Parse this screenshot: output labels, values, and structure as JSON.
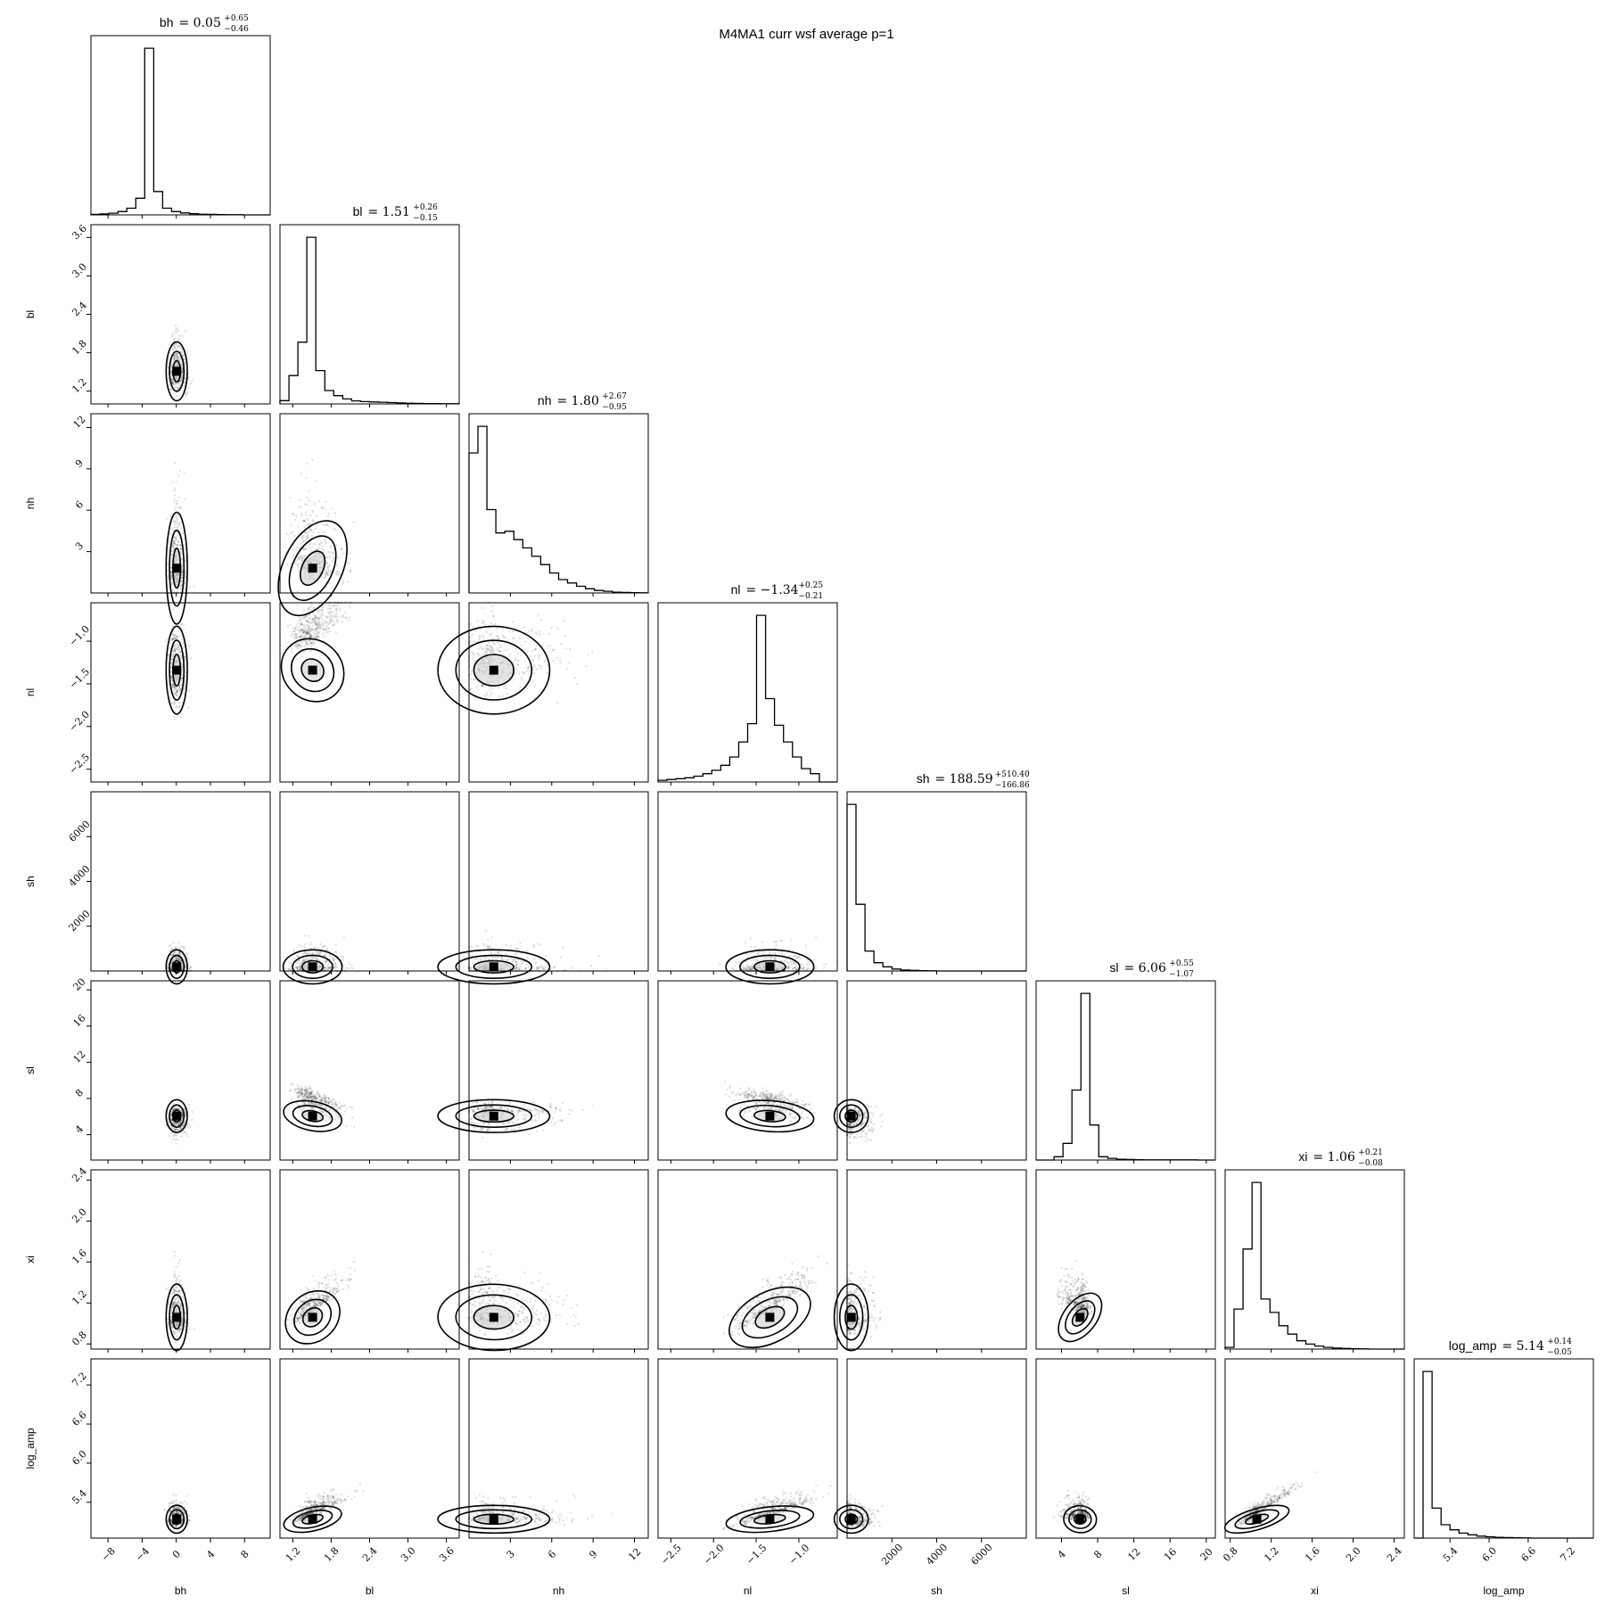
{
  "title": "M4MA1 curr wsf average p=1",
  "chart_data": {
    "type": "corner",
    "parameters": [
      "bh",
      "bl",
      "nh",
      "nl",
      "sh",
      "sl",
      "xi",
      "log_amp"
    ],
    "axis_labels": [
      "bh",
      "bl",
      "nh",
      "nl",
      "sh",
      "sl",
      "xi",
      "log_amp"
    ],
    "panel_titles": [
      {
        "param": "bh",
        "median": "0.05",
        "plus": "+0.65",
        "minus": "−0.46"
      },
      {
        "param": "bl",
        "median": "1.51",
        "plus": "+0.26",
        "minus": "−0.15"
      },
      {
        "param": "nh",
        "median": "1.80",
        "plus": "+2.67",
        "minus": "−0.95"
      },
      {
        "param": "nl",
        "median": "−1.34",
        "plus": "+0.25",
        "minus": "−0.21"
      },
      {
        "param": "sh",
        "median": "188.59",
        "plus": "+510.40",
        "minus": "−166.86"
      },
      {
        "param": "sl",
        "median": "6.06",
        "plus": "+0.55",
        "minus": "−1.07"
      },
      {
        "param": "xi",
        "median": "1.06",
        "plus": "+0.21",
        "minus": "−0.08"
      },
      {
        "param": "log_amp",
        "median": "5.14",
        "plus": "+0.14",
        "minus": "−0.05"
      }
    ],
    "ranges": [
      [
        -10,
        11
      ],
      [
        1.0,
        3.8
      ],
      [
        0,
        13
      ],
      [
        -2.65,
        -0.55
      ],
      [
        0,
        8000
      ],
      [
        1.2,
        21
      ],
      [
        0.75,
        2.5
      ],
      [
        4.85,
        7.6
      ]
    ],
    "medians": [
      0.05,
      1.51,
      1.8,
      -1.34,
      188.59,
      6.06,
      1.06,
      5.14
    ],
    "ticks": [
      [
        "−8",
        "−4",
        "0",
        "4",
        "8"
      ],
      [
        "1.2",
        "1.8",
        "2.4",
        "3.0",
        "3.6"
      ],
      [
        "3",
        "6",
        "9",
        "12"
      ],
      [
        "−2.5",
        "−2.0",
        "−1.5",
        "−1.0"
      ],
      [
        "2000",
        "4000",
        "6000"
      ],
      [
        "4",
        "8",
        "12",
        "16",
        "20"
      ],
      [
        "0.8",
        "1.2",
        "1.6",
        "2.0",
        "2.4"
      ],
      [
        "5.4",
        "6.0",
        "6.6",
        "7.2"
      ]
    ],
    "histograms": [
      [
        0.003,
        0.006,
        0.01,
        0.02,
        0.04,
        0.1,
        1.0,
        0.14,
        0.04,
        0.02,
        0.012,
        0.007,
        0.004,
        0.003,
        0.002,
        0.001,
        0.001,
        0.0,
        0.0,
        0.0
      ],
      [
        0.02,
        0.17,
        0.37,
        1.0,
        0.2,
        0.08,
        0.05,
        0.03,
        0.018,
        0.014,
        0.012,
        0.01,
        0.008,
        0.006,
        0.004,
        0.003,
        0.002,
        0.002,
        0.001,
        0.001
      ],
      [
        0.84,
        1.0,
        0.5,
        0.36,
        0.37,
        0.32,
        0.27,
        0.22,
        0.17,
        0.12,
        0.08,
        0.06,
        0.04,
        0.025,
        0.015,
        0.01,
        0.005,
        0.003,
        0.002,
        0.001
      ],
      [
        0.01,
        0.015,
        0.02,
        0.025,
        0.035,
        0.05,
        0.07,
        0.1,
        0.15,
        0.24,
        0.35,
        1.0,
        0.5,
        0.34,
        0.24,
        0.15,
        0.08,
        0.05,
        0.0,
        0.0
      ],
      [
        1.0,
        0.4,
        0.12,
        0.05,
        0.025,
        0.012,
        0.006,
        0.004,
        0.002,
        0.001,
        0.0,
        0.0,
        0.0,
        0.0,
        0.0,
        0.0,
        0.0,
        0.0,
        0.0,
        0.0
      ],
      [
        0.0,
        0.0,
        0.02,
        0.1,
        0.42,
        1.0,
        0.21,
        0.02,
        0.01,
        0.005,
        0.003,
        0.002,
        0.001,
        0.001,
        0.001,
        0.001,
        0.001,
        0.001,
        0.0,
        0.0
      ],
      [
        0.01,
        0.24,
        0.6,
        1.0,
        0.3,
        0.22,
        0.14,
        0.09,
        0.05,
        0.03,
        0.018,
        0.01,
        0.006,
        0.004,
        0.002,
        0.001,
        0.0,
        0.0,
        0.0,
        0.0
      ],
      [
        0.0,
        1.0,
        0.18,
        0.08,
        0.05,
        0.03,
        0.02,
        0.012,
        0.008,
        0.005,
        0.003,
        0.002,
        0.001,
        0.0,
        0.0,
        0.0,
        0.0,
        0.0,
        0.0,
        0.0
      ]
    ],
    "correlations": [
      [
        1,
        0,
        0,
        0,
        0,
        0,
        0,
        0
      ],
      [
        0,
        1,
        -0.55,
        0.85,
        0,
        -0.6,
        0.9,
        0.7
      ],
      [
        0,
        -0.55,
        1,
        -0.1,
        0,
        -0.1,
        -0.15,
        -0.1
      ],
      [
        0,
        0.85,
        -0.1,
        1,
        0,
        -0.45,
        0.85,
        0.6
      ],
      [
        0,
        0,
        0,
        0,
        1,
        0,
        0,
        0
      ],
      [
        0,
        -0.6,
        -0.1,
        -0.45,
        0,
        1,
        -0.7,
        -0.3
      ],
      [
        0,
        0.9,
        -0.15,
        0.85,
        0,
        -0.7,
        1,
        0.85
      ],
      [
        0,
        0.7,
        -0.1,
        0.6,
        0,
        -0.3,
        0.85,
        1
      ]
    ]
  }
}
